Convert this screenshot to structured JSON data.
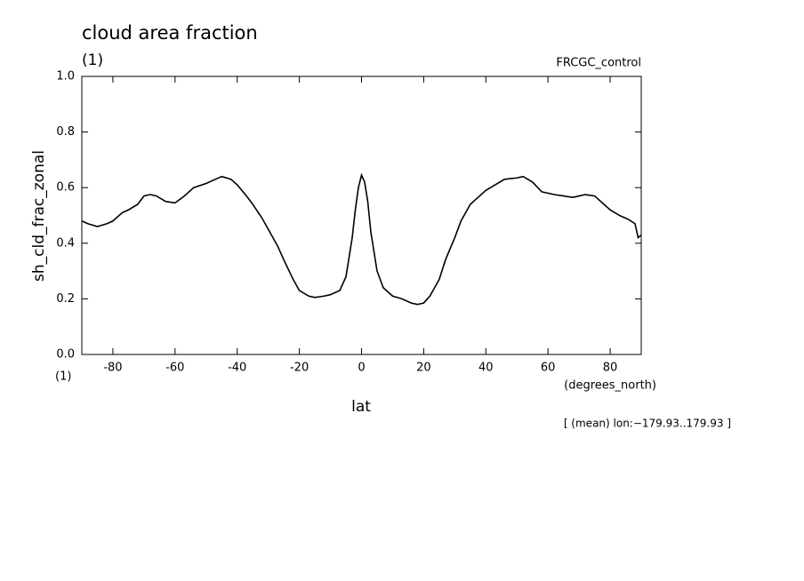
{
  "chart_data": {
    "type": "line",
    "title": "cloud area fraction",
    "subtitle": "(1)",
    "dataset_label": "FRCGC_control",
    "y_label": "sh_cld_frac_zonal",
    "y_units": "(1)",
    "x_label": "lat",
    "x_units": "(degrees_north)",
    "note": "[ (mean) lon:−179.93..179.93 ]",
    "x": [
      -90,
      -88,
      -85,
      -82,
      -80,
      -77,
      -75,
      -72,
      -70,
      -68,
      -66,
      -63,
      -60,
      -57,
      -54,
      -50,
      -47,
      -45,
      -42,
      -40,
      -37,
      -35,
      -32,
      -30,
      -27,
      -25,
      -22,
      -20,
      -17,
      -15,
      -12,
      -10,
      -7,
      -5,
      -3,
      -2,
      -1,
      0,
      1,
      2,
      3,
      5,
      7,
      10,
      13,
      16,
      18,
      20,
      22,
      25,
      27,
      30,
      32,
      35,
      38,
      40,
      43,
      46,
      50,
      52,
      55,
      58,
      62,
      65,
      68,
      70,
      72,
      75,
      78,
      80,
      83,
      86,
      88,
      89,
      90
    ],
    "series": [
      {
        "color": "#000000",
        "values": [
          0.48,
          0.47,
          0.46,
          0.47,
          0.48,
          0.51,
          0.52,
          0.54,
          0.57,
          0.575,
          0.57,
          0.55,
          0.545,
          0.57,
          0.6,
          0.615,
          0.63,
          0.64,
          0.63,
          0.61,
          0.57,
          0.54,
          0.49,
          0.45,
          0.39,
          0.34,
          0.27,
          0.23,
          0.21,
          0.205,
          0.21,
          0.215,
          0.23,
          0.28,
          0.42,
          0.52,
          0.6,
          0.645,
          0.62,
          0.55,
          0.44,
          0.3,
          0.24,
          0.21,
          0.2,
          0.185,
          0.18,
          0.185,
          0.21,
          0.27,
          0.34,
          0.42,
          0.48,
          0.54,
          0.57,
          0.59,
          0.61,
          0.63,
          0.635,
          0.64,
          0.62,
          0.585,
          0.575,
          0.57,
          0.565,
          0.57,
          0.575,
          0.57,
          0.54,
          0.52,
          0.5,
          0.485,
          0.47,
          0.42,
          0.43
        ]
      }
    ],
    "xlim": [
      -90,
      90
    ],
    "xticks": [
      -80,
      -60,
      -40,
      -20,
      0,
      20,
      40,
      60,
      80
    ],
    "ylim": [
      0,
      1
    ],
    "yticks": [
      {
        "value": 0,
        "label": "0.0"
      },
      0.2,
      0.4,
      0.6,
      0.8,
      {
        "value": 1,
        "label": "1.0"
      }
    ]
  }
}
